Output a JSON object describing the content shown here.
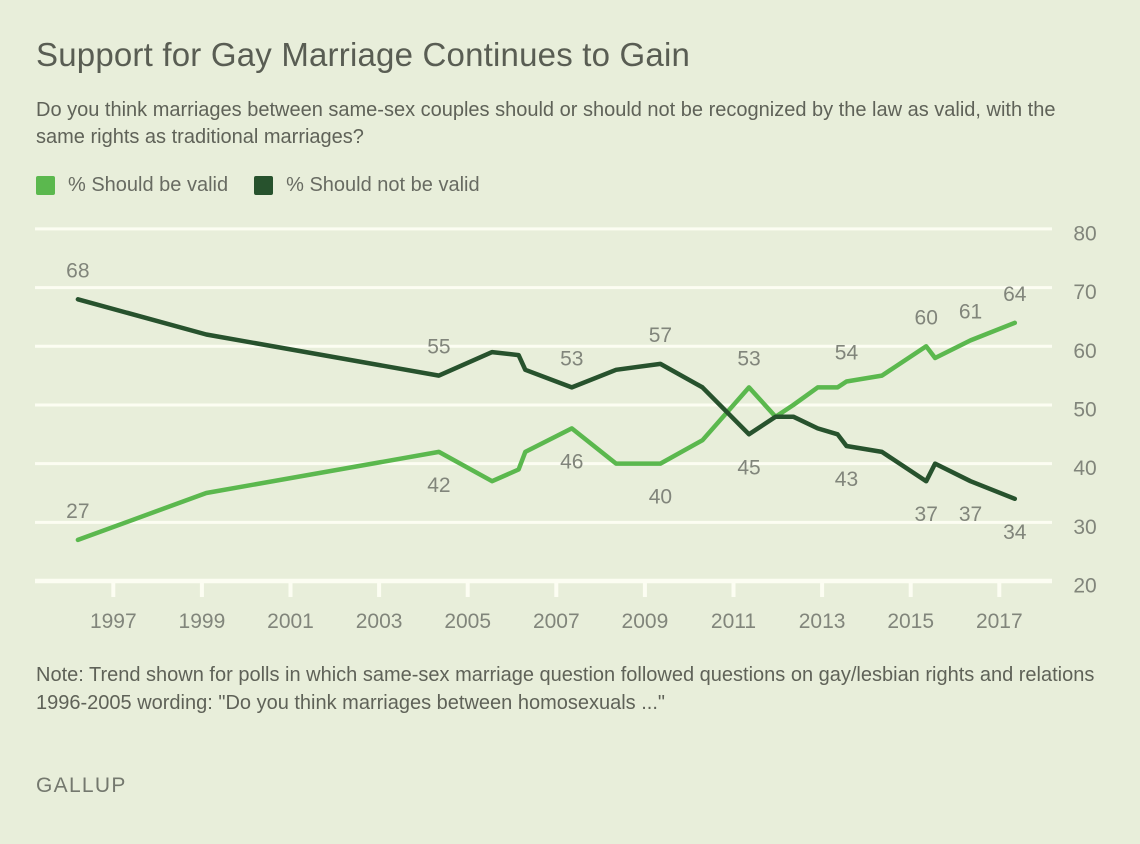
{
  "chart_data": {
    "type": "line",
    "title": "Support for Gay Marriage Continues to Gain",
    "subtitle": "Do you think marriages between same-sex couples should or should not be recognized by the law as valid, with the same rights as traditional marriages?",
    "legend_position": "top-left",
    "grid": true,
    "x_axis": {
      "ticks": [
        1997,
        1999,
        2001,
        2003,
        2005,
        2007,
        2009,
        2011,
        2013,
        2015,
        2017
      ],
      "range": [
        1995.5,
        2018.3
      ]
    },
    "y_axis": {
      "ticks": [
        80,
        70,
        60,
        50,
        40,
        30,
        20
      ],
      "range": [
        20,
        80
      ]
    },
    "series": [
      {
        "name": "% Should be valid",
        "color": "#5bb84e",
        "points": [
          [
            1996.2,
            27
          ],
          [
            1999.1,
            35
          ],
          [
            2004.35,
            42
          ],
          [
            2005.55,
            37
          ],
          [
            2006.15,
            39
          ],
          [
            2006.3,
            42
          ],
          [
            2007.35,
            46
          ],
          [
            2008.35,
            40
          ],
          [
            2009.35,
            40
          ],
          [
            2010.3,
            44
          ],
          [
            2011.35,
            53
          ],
          [
            2011.95,
            48
          ],
          [
            2012.35,
            50
          ],
          [
            2012.9,
            53
          ],
          [
            2013.35,
            53
          ],
          [
            2013.55,
            54
          ],
          [
            2014.35,
            55
          ],
          [
            2015.35,
            60
          ],
          [
            2015.55,
            58
          ],
          [
            2016.35,
            61
          ],
          [
            2017.35,
            64
          ]
        ],
        "point_labels": [
          {
            "x": 1996.2,
            "y": 27,
            "text": "27",
            "pos": "above"
          },
          {
            "x": 2004.35,
            "y": 42,
            "text": "42",
            "pos": "below"
          },
          {
            "x": 2007.35,
            "y": 46,
            "text": "46",
            "pos": "below"
          },
          {
            "x": 2009.35,
            "y": 40,
            "text": "40",
            "pos": "below"
          },
          {
            "x": 2011.35,
            "y": 53,
            "text": "53",
            "pos": "above"
          },
          {
            "x": 2013.55,
            "y": 54,
            "text": "54",
            "pos": "above"
          },
          {
            "x": 2015.35,
            "y": 60,
            "text": "60",
            "pos": "above"
          },
          {
            "x": 2016.35,
            "y": 61,
            "text": "61",
            "pos": "above"
          },
          {
            "x": 2017.35,
            "y": 64,
            "text": "64",
            "pos": "above"
          }
        ]
      },
      {
        "name": "% Should not be valid",
        "color": "#27522d",
        "points": [
          [
            1996.2,
            68
          ],
          [
            1999.1,
            62
          ],
          [
            2004.35,
            55
          ],
          [
            2005.55,
            59
          ],
          [
            2006.15,
            58.5
          ],
          [
            2006.3,
            56
          ],
          [
            2007.35,
            53
          ],
          [
            2008.35,
            56
          ],
          [
            2009.35,
            57
          ],
          [
            2010.3,
            53
          ],
          [
            2011.35,
            45
          ],
          [
            2011.95,
            48
          ],
          [
            2012.35,
            48
          ],
          [
            2012.9,
            46
          ],
          [
            2013.35,
            45
          ],
          [
            2013.55,
            43
          ],
          [
            2014.35,
            42
          ],
          [
            2015.35,
            37
          ],
          [
            2015.55,
            40
          ],
          [
            2016.35,
            37
          ],
          [
            2017.35,
            34
          ]
        ],
        "point_labels": [
          {
            "x": 1996.2,
            "y": 68,
            "text": "68",
            "pos": "above"
          },
          {
            "x": 2004.35,
            "y": 55,
            "text": "55",
            "pos": "above"
          },
          {
            "x": 2007.35,
            "y": 53,
            "text": "53",
            "pos": "above"
          },
          {
            "x": 2009.35,
            "y": 57,
            "text": "57",
            "pos": "above"
          },
          {
            "x": 2011.35,
            "y": 45,
            "text": "45",
            "pos": "below"
          },
          {
            "x": 2013.55,
            "y": 43,
            "text": "43",
            "pos": "below"
          },
          {
            "x": 2015.35,
            "y": 37,
            "text": "37",
            "pos": "below"
          },
          {
            "x": 2016.35,
            "y": 37,
            "text": "37",
            "pos": "below"
          },
          {
            "x": 2017.35,
            "y": 34,
            "text": "34",
            "pos": "below"
          }
        ]
      }
    ]
  },
  "footer": {
    "note": "Note: Trend shown for polls in which same-sex marriage question followed questions on gay/lesbian rights and relations",
    "wording": "1996-2005 wording: \"Do you think marriages between homosexuals ...\"",
    "brand": "GALLUP"
  },
  "colors": {
    "background": "#e8eeda",
    "grid": "#fcfdf2",
    "valid_green": "#5bb84e",
    "not_valid_green": "#27522d",
    "title_text": "#595d53",
    "body_text": "#5f6258",
    "axis_text": "#81857b"
  }
}
